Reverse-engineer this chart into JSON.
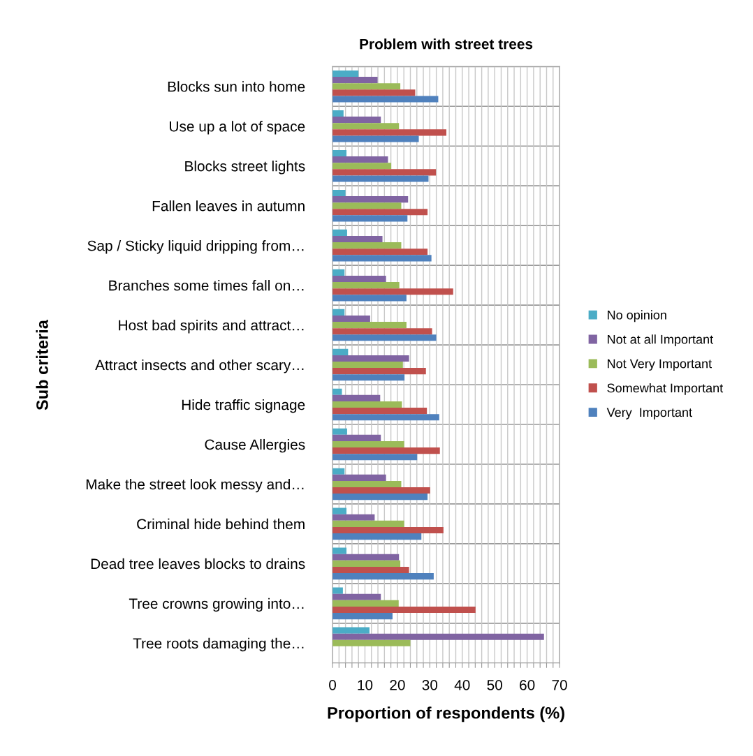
{
  "chart_data": {
    "type": "bar",
    "orientation": "horizontal",
    "title": "Problem with street trees",
    "xlabel": "Proportion of respondents (%)",
    "ylabel": "Sub criteria",
    "categories": [
      "Blocks sun into home",
      "Use up a lot of space",
      "Blocks street lights",
      "Fallen leaves in autumn",
      "Sap / Sticky liquid dripping from…",
      "Branches some times fall on…",
      "Host bad spirits and attract…",
      "Attract insects and other scary…",
      "Hide traffic signage",
      "Cause Allergies",
      "Make the street look messy and…",
      "Criminal hide behind them",
      "Dead tree leaves blocks to drains",
      "Tree crowns growing into…",
      "Tree roots damaging the…"
    ],
    "series": [
      {
        "name": "No opinion",
        "color": "#4bacc6",
        "values": [
          8.0,
          3.4,
          4.3,
          4.0,
          4.5,
          3.7,
          3.7,
          4.8,
          2.9,
          4.5,
          3.7,
          4.3,
          4.3,
          3.2,
          11.4
        ]
      },
      {
        "name": "Not at all Important",
        "color": "#8064a2",
        "values": [
          13.9,
          14.9,
          17.1,
          23.3,
          15.4,
          16.5,
          11.6,
          23.6,
          14.7,
          14.9,
          16.5,
          13.0,
          20.5,
          14.9,
          65.2
        ]
      },
      {
        "name": "Not Very Important",
        "color": "#9bbb59",
        "values": [
          20.9,
          20.5,
          18.1,
          21.2,
          21.2,
          20.6,
          22.8,
          21.7,
          21.4,
          22.1,
          21.2,
          22.1,
          20.9,
          20.4,
          24.0
        ]
      },
      {
        "name": "Somewhat Important",
        "color": "#c0504d",
        "values": [
          25.5,
          35.1,
          31.9,
          29.3,
          29.3,
          37.2,
          30.7,
          28.8,
          29.1,
          33.1,
          30.1,
          34.2,
          23.6,
          44.1,
          null
        ]
      },
      {
        "name": "Very  Important",
        "color": "#4f81bd",
        "values": [
          32.6,
          26.6,
          29.6,
          23.1,
          30.5,
          22.8,
          32.0,
          22.2,
          32.9,
          26.1,
          29.3,
          27.4,
          31.2,
          18.5,
          null
        ]
      }
    ],
    "xlim": [
      0,
      70
    ],
    "xticks": [
      0,
      {
        "value": 2,
        "label": null
      },
      {
        "value": 4,
        "label": null
      },
      {
        "value": 6,
        "label": null
      },
      {
        "value": 8,
        "label": null
      },
      10,
      {
        "value": 12,
        "label": null
      },
      {
        "value": 14,
        "label": null
      },
      {
        "value": 16,
        "label": null
      },
      {
        "value": 18,
        "label": null
      },
      20,
      {
        "value": 22,
        "label": null
      },
      {
        "value": 24,
        "label": null
      },
      {
        "value": 26,
        "label": null
      },
      {
        "value": 28,
        "label": null
      },
      30,
      {
        "value": 32,
        "label": null
      },
      {
        "value": 34,
        "label": null
      },
      {
        "value": 36,
        "label": null
      },
      {
        "value": 38,
        "label": null
      },
      40,
      {
        "value": 42,
        "label": null
      },
      {
        "value": 44,
        "label": null
      },
      {
        "value": 46,
        "label": null
      },
      {
        "value": 48,
        "label": null
      },
      50,
      {
        "value": 52,
        "label": null
      },
      {
        "value": 54,
        "label": null
      },
      {
        "value": 56,
        "label": null
      },
      {
        "value": 58,
        "label": null
      },
      60,
      {
        "value": 62,
        "label": null
      },
      {
        "value": 64,
        "label": null
      },
      {
        "value": 66,
        "label": null
      },
      {
        "value": 68,
        "label": null
      },
      70
    ],
    "grid": true,
    "legend": "right"
  }
}
